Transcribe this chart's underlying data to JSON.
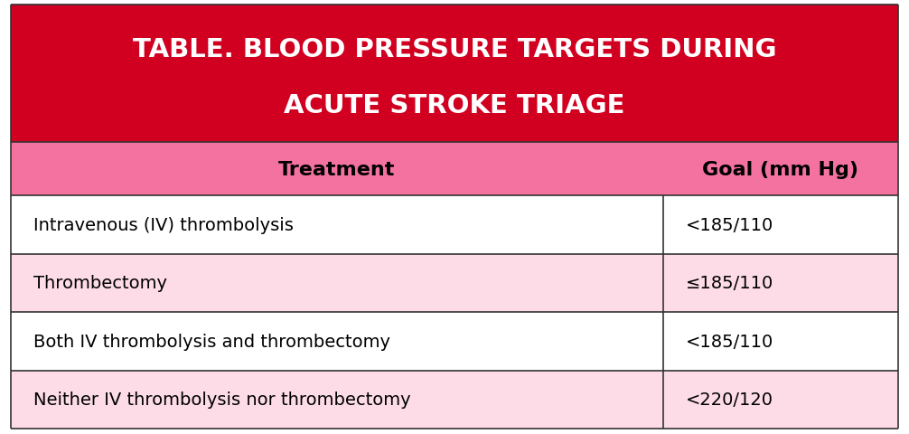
{
  "title_line1": "TABLE. BLOOD PRESSURE TARGETS DURING",
  "title_line2": "ACUTE STROKE TRIAGE",
  "title_bg_color": "#D10020",
  "title_text_color": "#FFFFFF",
  "header_bg_color": "#F472A0",
  "header_text_color": "#000000",
  "col1_header": "Treatment",
  "col2_header": "Goal (mm Hg)",
  "rows": [
    {
      "treatment": "Intravenous (IV) thrombolysis",
      "goal": "<185/110",
      "bg": "#FFFFFF"
    },
    {
      "treatment": "Thrombectomy",
      "goal": "≤185/110",
      "bg": "#FDDCE8"
    },
    {
      "treatment": "Both IV thrombolysis and thrombectomy",
      "goal": "<185/110",
      "bg": "#FFFFFF"
    },
    {
      "treatment": "Neither IV thrombolysis nor thrombectomy",
      "goal": "<220/120",
      "bg": "#FDDCE8"
    }
  ],
  "border_color": "#333333",
  "fig_bg_color": "#FFFFFF",
  "col_split": 0.735,
  "figsize": [
    10.06,
    4.81
  ],
  "dpi": 100
}
